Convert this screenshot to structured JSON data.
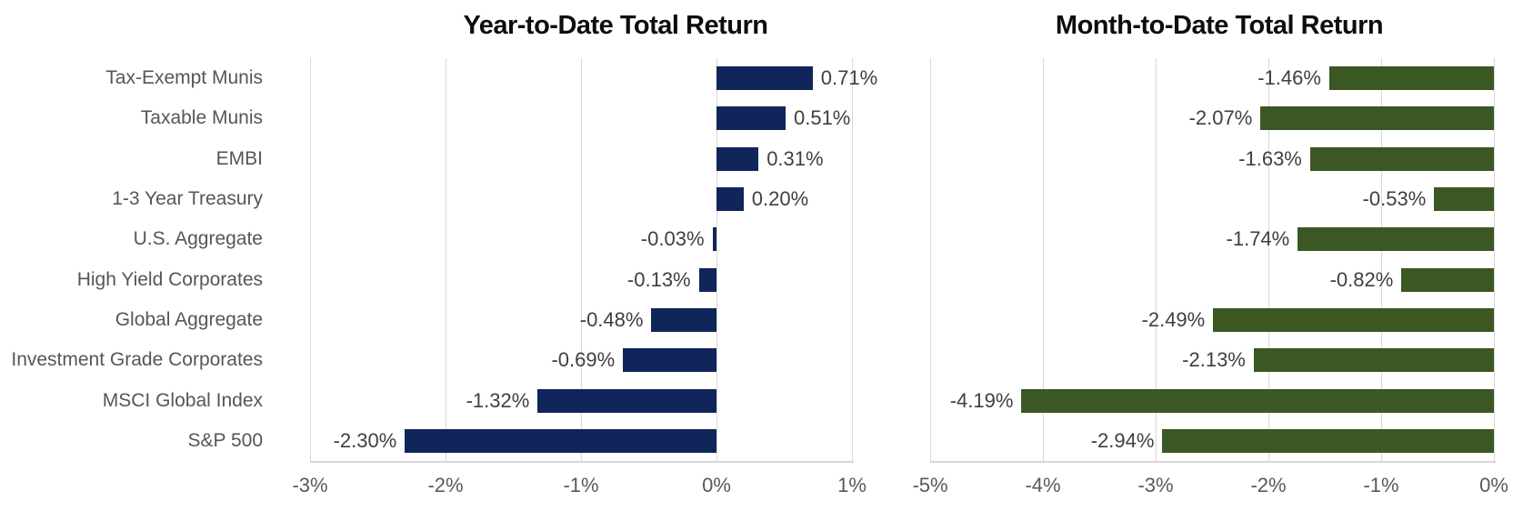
{
  "chart_data": [
    {
      "type": "bar",
      "orientation": "horizontal",
      "title": "Year-to-Date Total Return",
      "categories": [
        "Tax-Exempt Munis",
        "Taxable Munis",
        "EMBI",
        "1-3 Year Treasury",
        "U.S. Aggregate",
        "High Yield Corporates",
        "Global Aggregate",
        "Investment Grade Corporates",
        "MSCI Global Index",
        "S&P 500"
      ],
      "values": [
        0.71,
        0.51,
        0.31,
        0.2,
        -0.03,
        -0.13,
        -0.48,
        -0.69,
        -1.32,
        -2.3
      ],
      "value_labels": [
        "0.71%",
        "0.51%",
        "0.31%",
        "0.20%",
        "-0.03%",
        "-0.13%",
        "-0.48%",
        "-0.69%",
        "-1.32%",
        "-2.30%"
      ],
      "bar_color": "#10265a",
      "xlim": [
        -3,
        1
      ],
      "x_ticks": [
        -3,
        -2,
        -1,
        0,
        1
      ],
      "x_tick_labels": [
        "-3%",
        "-2%",
        "-1%",
        "0%",
        "1%"
      ],
      "grid": true,
      "legend": "none",
      "show_category_labels": true
    },
    {
      "type": "bar",
      "orientation": "horizontal",
      "title": "Month-to-Date Total Return",
      "categories": [
        "Tax-Exempt Munis",
        "Taxable Munis",
        "EMBI",
        "1-3 Year Treasury",
        "U.S. Aggregate",
        "High Yield Corporates",
        "Global Aggregate",
        "Investment Grade Corporates",
        "MSCI Global Index",
        "S&P 500"
      ],
      "values": [
        -1.46,
        -2.07,
        -1.63,
        -0.53,
        -1.74,
        -0.82,
        -2.49,
        -2.13,
        -4.19,
        -2.94
      ],
      "value_labels": [
        "-1.46%",
        "-2.07%",
        "-1.63%",
        "-0.53%",
        "-1.74%",
        "-0.82%",
        "-2.49%",
        "-2.13%",
        "-4.19%",
        "-2.94%"
      ],
      "bar_color": "#3b5723",
      "xlim": [
        -5,
        0
      ],
      "x_ticks": [
        -5,
        -4,
        -3,
        -2,
        -1,
        0
      ],
      "x_tick_labels": [
        "-5%",
        "-4%",
        "-3%",
        "-2%",
        "-1%",
        "0%"
      ],
      "grid": true,
      "legend": "none",
      "show_category_labels": false
    }
  ]
}
